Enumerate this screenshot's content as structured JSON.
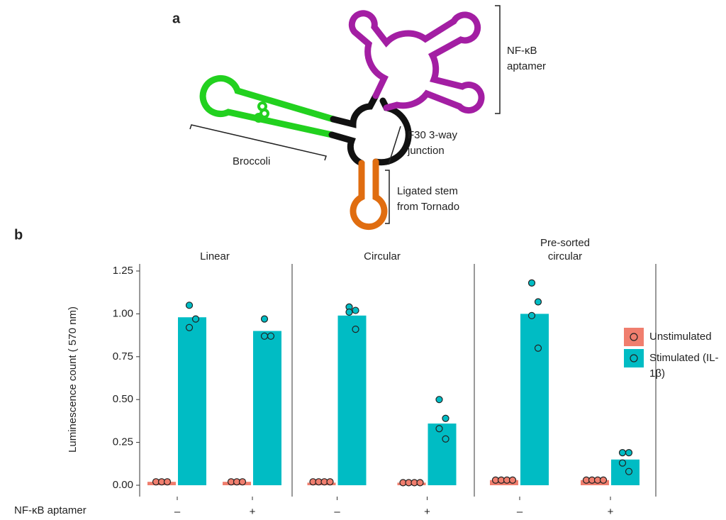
{
  "panel_a": {
    "label": "a",
    "nfkb": [
      "NF-κB",
      "aptamer"
    ],
    "junction": [
      "F30 3-way",
      "junction"
    ],
    "broccoli": "Broccoli",
    "stem": [
      "Ligated stem",
      "from Tornado"
    ]
  },
  "panel_b": {
    "label": "b",
    "ylabel": "Luminescence count ( 570 nm)",
    "xlabel": "NF-κB aptamer"
  },
  "chart_data": [
    {
      "type": "bar",
      "title": "Linear",
      "categories": [
        "–",
        "+"
      ],
      "ylim": [
        0,
        1.25
      ],
      "yticks": [
        {
          "value": 0,
          "label": "0.00"
        },
        {
          "value": 0.25,
          "label": "0.25"
        },
        {
          "value": 0.5,
          "label": "0.50"
        },
        {
          "value": 0.75,
          "label": "0.75"
        },
        {
          "value": 1,
          "label": "1.00"
        },
        {
          "value": 1.25,
          "label": "1.25"
        }
      ],
      "series": [
        {
          "name": "Unstimulated",
          "color": "#f07e6e",
          "values": [
            0.02,
            0.02
          ],
          "points": [
            [
              0.02,
              0.02,
              0.02
            ],
            [
              0.02,
              0.02,
              0.02
            ]
          ]
        },
        {
          "name": "Stimulated (IL-1β)",
          "color": "#00bcc4",
          "values": [
            0.98,
            0.9
          ],
          "points": [
            [
              1.05,
              0.97,
              0.92
            ],
            [
              0.97,
              0.87,
              0.87
            ]
          ]
        }
      ]
    },
    {
      "type": "bar",
      "title": "Circular",
      "categories": [
        "–",
        "+"
      ],
      "ylim": [
        0,
        1.25
      ],
      "series": [
        {
          "name": "Unstimulated",
          "color": "#f07e6e",
          "values": [
            0.015,
            0.015
          ],
          "points": [
            [
              0.02,
              0.02,
              0.02,
              0.02
            ],
            [
              0.015,
              0.015,
              0.015,
              0.015
            ]
          ]
        },
        {
          "name": "Stimulated (IL-1β)",
          "color": "#00bcc4",
          "values": [
            0.99,
            0.36
          ],
          "points": [
            [
              1.04,
              1.02,
              1.01,
              0.91
            ],
            [
              0.5,
              0.39,
              0.33,
              0.27
            ]
          ]
        }
      ]
    },
    {
      "type": "bar",
      "title": "Pre-sorted circular",
      "categories": [
        "–",
        "+"
      ],
      "ylim": [
        0,
        1.25
      ],
      "series": [
        {
          "name": "Unstimulated",
          "color": "#f07e6e",
          "values": [
            0.03,
            0.03
          ],
          "points": [
            [
              0.03,
              0.03,
              0.03,
              0.03
            ],
            [
              0.03,
              0.03,
              0.03,
              0.03
            ]
          ]
        },
        {
          "name": "Stimulated (IL-1β)",
          "color": "#00bcc4",
          "values": [
            1.0,
            0.15
          ],
          "points": [
            [
              1.18,
              1.07,
              0.99,
              0.8
            ],
            [
              0.19,
              0.19,
              0.13,
              0.08
            ]
          ]
        }
      ]
    }
  ]
}
